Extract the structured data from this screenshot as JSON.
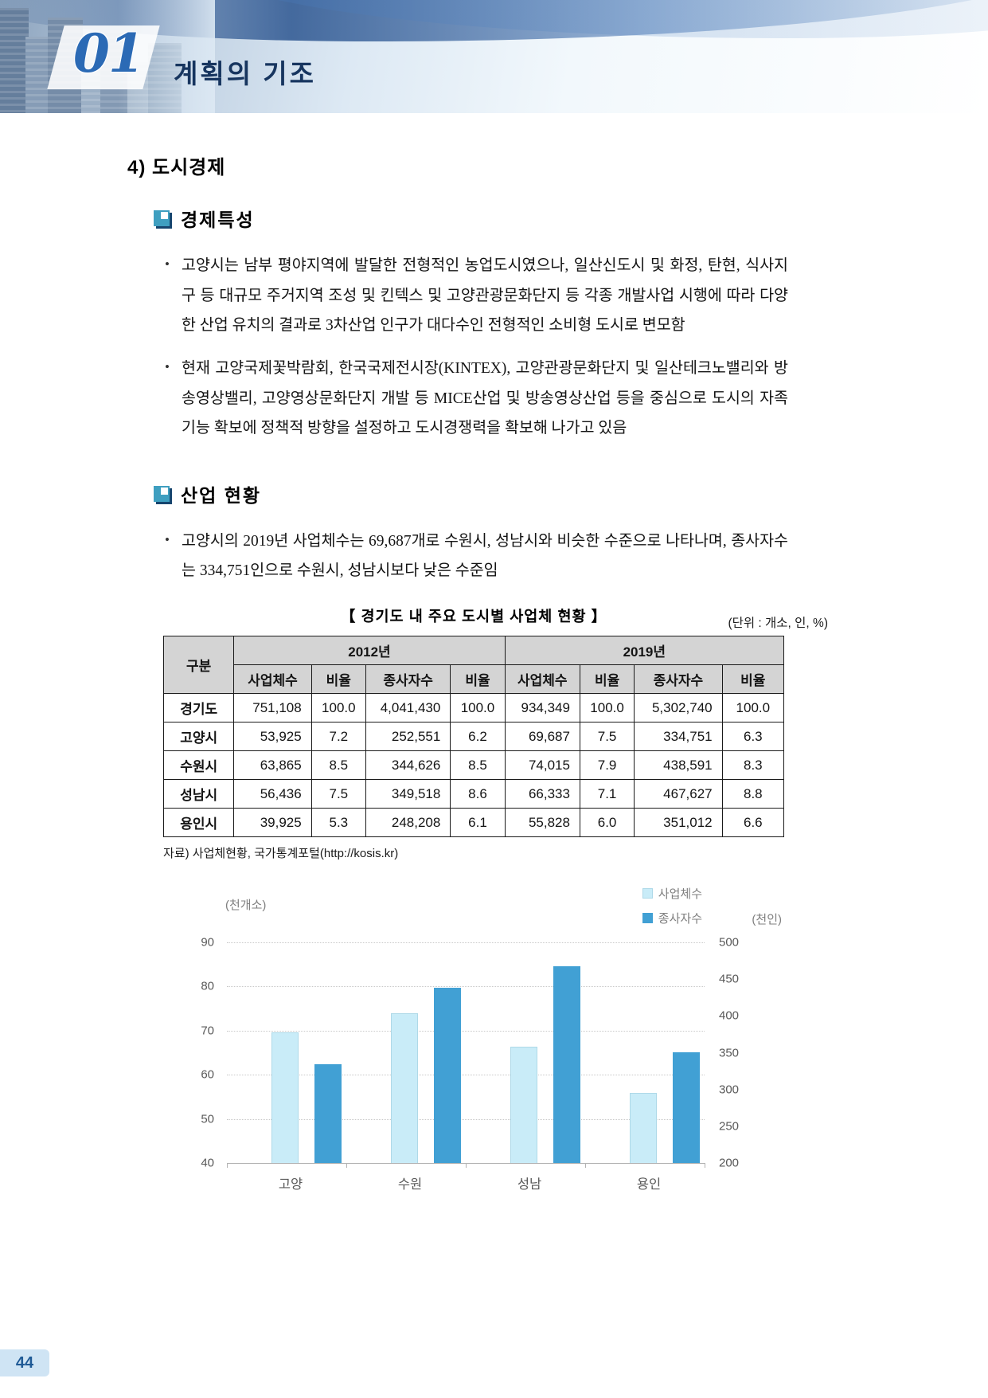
{
  "header": {
    "chapter_number": "01",
    "chapter_title": "계획의 기조"
  },
  "page": {
    "number": "44"
  },
  "content": {
    "section_title": "4) 도시경제",
    "subsections": [
      {
        "title": "경제특성",
        "bullets": [
          "고양시는 남부 평야지역에 발달한 전형적인 농업도시였으나, 일산신도시 및 화정, 탄현, 식사지구 등 대규모 주거지역 조성 및 킨텍스 및 고양관광문화단지 등 각종 개발사업 시행에 따라 다양한 산업 유치의 결과로 3차산업 인구가 대다수인 전형적인 소비형 도시로 변모함",
          "현재 고양국제꽃박람회, 한국국제전시장(KINTEX), 고양관광문화단지 및 일산테크노밸리와 방송영상밸리, 고양영상문화단지 개발 등 MICE산업 및 방송영상산업 등을 중심으로 도시의 자족기능 확보에 정책적 방향을 설정하고 도시경쟁력을 확보해 나가고 있음"
        ]
      },
      {
        "title": "산업 현황",
        "bullets": [
          "고양시의 2019년 사업체수는 69,687개로 수원시, 성남시와 비슷한 수준으로 나타나며, 종사자수는 334,751인으로 수원시, 성남시보다 낮은 수준임"
        ]
      }
    ]
  },
  "table": {
    "title": "【 경기도 내 주요 도시별 사업체 현황 】",
    "unit_note": "(단위 : 개소, 인, %)",
    "corner_header": "구분",
    "year_groups": [
      "2012년",
      "2019년"
    ],
    "sub_headers": [
      "사업체수",
      "비율",
      "종사자수",
      "비율",
      "사업체수",
      "비율",
      "종사자수",
      "비율"
    ],
    "rows": [
      {
        "label": "경기도",
        "values": [
          "751,108",
          "100.0",
          "4,041,430",
          "100.0",
          "934,349",
          "100.0",
          "5,302,740",
          "100.0"
        ]
      },
      {
        "label": "고양시",
        "values": [
          "53,925",
          "7.2",
          "252,551",
          "6.2",
          "69,687",
          "7.5",
          "334,751",
          "6.3"
        ]
      },
      {
        "label": "수원시",
        "values": [
          "63,865",
          "8.5",
          "344,626",
          "8.5",
          "74,015",
          "7.9",
          "438,591",
          "8.3"
        ]
      },
      {
        "label": "성남시",
        "values": [
          "56,436",
          "7.5",
          "349,518",
          "8.6",
          "66,333",
          "7.1",
          "467,627",
          "8.8"
        ]
      },
      {
        "label": "용인시",
        "values": [
          "39,925",
          "5.3",
          "248,208",
          "6.1",
          "55,828",
          "6.0",
          "351,012",
          "6.6"
        ]
      }
    ],
    "source": "자료) 사업체현황, 국가통계포털(http://kosis.kr)"
  },
  "chart_data": {
    "type": "bar",
    "categories": [
      "고양",
      "수원",
      "성남",
      "용인"
    ],
    "series": [
      {
        "name": "사업체수",
        "axis": "left",
        "unit": "천개소",
        "values": [
          69.687,
          74.015,
          66.333,
          55.828
        ],
        "color": "#c9ecf8"
      },
      {
        "name": "종사자수",
        "axis": "right",
        "unit": "천인",
        "values": [
          334.751,
          438.591,
          467.627,
          351.012
        ],
        "color": "#41a0d4"
      }
    ],
    "left_axis": {
      "label": "(천개소)",
      "min": 40,
      "max": 90,
      "ticks": [
        90,
        80,
        70,
        60,
        50,
        40
      ]
    },
    "right_axis": {
      "label": "(천인)",
      "min": 200,
      "max": 500,
      "ticks": [
        500,
        450,
        400,
        350,
        300,
        250,
        200
      ]
    },
    "legend_position": "top-right",
    "grid": true
  }
}
